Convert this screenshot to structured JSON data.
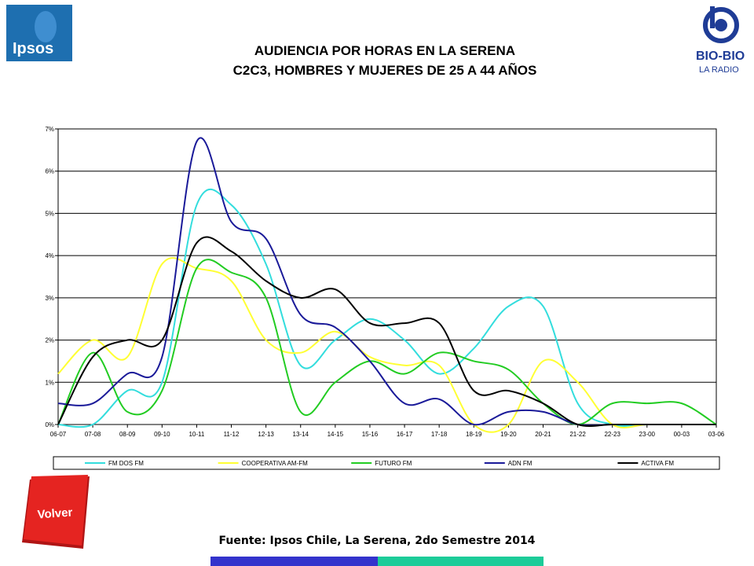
{
  "header": {
    "title_line1": "AUDIENCIA POR HORAS EN LA SERENA",
    "title_line2": "C2C3, HOMBRES Y MUJERES DE 25 A 44 AÑOS"
  },
  "logos": {
    "ipsos": "Ipsos",
    "biobio_main": "BIO-BIO",
    "biobio_sub": "LA RADIO"
  },
  "nav": {
    "volver_label": "Volver"
  },
  "footer": {
    "source": "Fuente: Ipsos Chile, La Serena, 2do Semestre 2014"
  },
  "colors": {
    "accent_blue": "#3333cc",
    "accent_teal": "#1ccc99",
    "ipsos_blue": "#1e6fb0",
    "biobio_blue": "#1f3c96",
    "volver_red": "#e52421"
  },
  "chart_data": {
    "type": "line",
    "title": "",
    "xlabel": "",
    "ylabel": "",
    "ylim": [
      0,
      7
    ],
    "y_tick_labels": [
      "0%",
      "1%",
      "2%",
      "3%",
      "4%",
      "5%",
      "6%",
      "7%"
    ],
    "grid": true,
    "legend_position": "bottom",
    "categories": [
      "06-07",
      "07-08",
      "08-09",
      "09-10",
      "10-11",
      "11-12",
      "12-13",
      "13-14",
      "14-15",
      "15-16",
      "16-17",
      "17-18",
      "18-19",
      "19-20",
      "20-21",
      "21-22",
      "22-23",
      "23-00",
      "00-03",
      "03-06"
    ],
    "series": [
      {
        "name": "FM DOS FM",
        "color": "#33dddd",
        "values": [
          0,
          0,
          0.8,
          1.0,
          5.2,
          5.2,
          3.8,
          1.4,
          2.0,
          2.5,
          2.0,
          1.2,
          1.8,
          2.8,
          2.8,
          0.5,
          0,
          0,
          0,
          0
        ]
      },
      {
        "name": "COOPERATIVA AM-FM",
        "color": "#ffff33",
        "values": [
          1.2,
          2.0,
          1.6,
          3.8,
          3.7,
          3.4,
          2.0,
          1.7,
          2.2,
          1.6,
          1.4,
          1.4,
          0,
          0,
          1.5,
          1.0,
          0,
          0,
          0,
          0
        ]
      },
      {
        "name": "FUTURO FM",
        "color": "#22cc22",
        "values": [
          0,
          1.7,
          0.3,
          0.8,
          3.7,
          3.6,
          3.0,
          0.3,
          1.0,
          1.5,
          1.2,
          1.7,
          1.5,
          1.3,
          0.5,
          0,
          0.5,
          0.5,
          0.5,
          0
        ]
      },
      {
        "name": "ADN FM",
        "color": "#1a1a99",
        "values": [
          0.5,
          0.5,
          1.2,
          1.6,
          6.7,
          4.8,
          4.4,
          2.6,
          2.3,
          1.5,
          0.5,
          0.6,
          0,
          0.3,
          0.3,
          0,
          0,
          0,
          0,
          0
        ]
      },
      {
        "name": "ACTIVA FM",
        "color": "#000000",
        "values": [
          0,
          1.6,
          2.0,
          2.0,
          4.3,
          4.1,
          3.4,
          3.0,
          3.2,
          2.4,
          2.4,
          2.4,
          0.8,
          0.8,
          0.5,
          0,
          0,
          0,
          0,
          0
        ]
      }
    ]
  }
}
